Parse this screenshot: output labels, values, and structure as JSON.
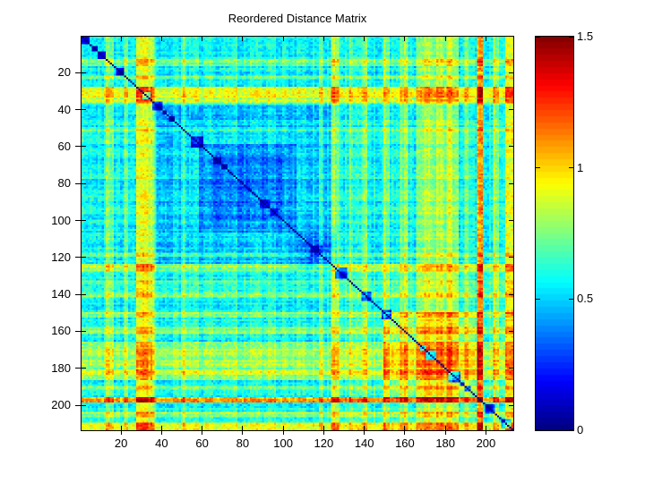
{
  "figure": {
    "background": "#ffffff",
    "border_color": "#000000",
    "text_color": "#000000"
  },
  "chart_data": {
    "type": "heatmap",
    "title": "Reordered Distance Matrix",
    "xlabel": "",
    "ylabel": "",
    "colormap": "jet",
    "clim": [
      0,
      1.5
    ],
    "x_range": [
      1,
      213
    ],
    "y_range": [
      1,
      213
    ],
    "x_ticks": [
      20,
      40,
      60,
      80,
      100,
      120,
      140,
      160,
      180,
      200
    ],
    "y_ticks": [
      20,
      40,
      60,
      80,
      100,
      120,
      140,
      160,
      180,
      200
    ],
    "colorbar": {
      "min": 0,
      "max": 1.5,
      "levels": 64,
      "ticks": [
        {
          "value": 0,
          "label": "0"
        },
        {
          "value": 0.5,
          "label": "0.5"
        },
        {
          "value": 1,
          "label": "1"
        },
        {
          "value": 1.5,
          "label": "1.5"
        }
      ]
    },
    "matrix_model": {
      "comment": "Symmetric 213x213 distance matrix: zero diagonal (dark blue), teal ~0.57 background, cool blue cluster blocks near indices 38-127 and 107-126, warm block 150-196, hot orange rows/cols near 30, 125, 170-185, red line near 197 and bottom rows",
      "n": 213,
      "seed": 20130412,
      "base": 0.57,
      "pair_noise": 0.085,
      "stripe_noise": 0.06,
      "diagonal_value": 0,
      "blocks": [
        {
          "from": 128,
          "to": 213,
          "value": 0.6
        },
        {
          "from": 38,
          "to": 127,
          "value": 0.5
        },
        {
          "from": 40,
          "to": 58,
          "value": 0.46
        },
        {
          "from": 59,
          "to": 106,
          "value": 0.42
        },
        {
          "from": 64,
          "to": 100,
          "value": 0.36
        },
        {
          "from": 107,
          "to": 126,
          "value": 0.4
        },
        {
          "from": 150,
          "to": 196,
          "value": 0.72
        },
        {
          "from": 197,
          "to": 213,
          "value": 0.56
        }
      ],
      "hot_bands": [
        {
          "from": 13,
          "to": 16,
          "amount": 0.16
        },
        {
          "from": 22,
          "to": 23,
          "amount": 0.12
        },
        {
          "from": 28,
          "to": 36,
          "amount": 0.28
        },
        {
          "from": 30,
          "to": 33,
          "amount": 0.4
        },
        {
          "from": 50,
          "to": 51,
          "amount": 0.12
        },
        {
          "from": 76,
          "to": 77,
          "amount": 0.08
        },
        {
          "from": 118,
          "to": 119,
          "amount": 0.12
        },
        {
          "from": 124,
          "to": 127,
          "amount": 0.26
        },
        {
          "from": 133,
          "to": 134,
          "amount": 0.14
        },
        {
          "from": 139,
          "to": 141,
          "amount": 0.16
        },
        {
          "from": 150,
          "to": 152,
          "amount": 0.2
        },
        {
          "from": 158,
          "to": 161,
          "amount": 0.18
        },
        {
          "from": 166,
          "to": 186,
          "amount": 0.16
        },
        {
          "from": 170,
          "to": 172,
          "amount": 0.3
        },
        {
          "from": 176,
          "to": 178,
          "amount": 0.26
        },
        {
          "from": 181,
          "to": 183,
          "amount": 0.3
        },
        {
          "from": 190,
          "to": 191,
          "amount": 0.16
        },
        {
          "from": 196,
          "to": 198,
          "amount": 0.5
        },
        {
          "from": 204,
          "to": 206,
          "amount": 0.22
        },
        {
          "from": 210,
          "to": 213,
          "amount": 0.34
        }
      ],
      "diag_clusters": {
        "count": 30,
        "min_len": 2,
        "max_len": 6,
        "value": 0.13
      }
    }
  }
}
